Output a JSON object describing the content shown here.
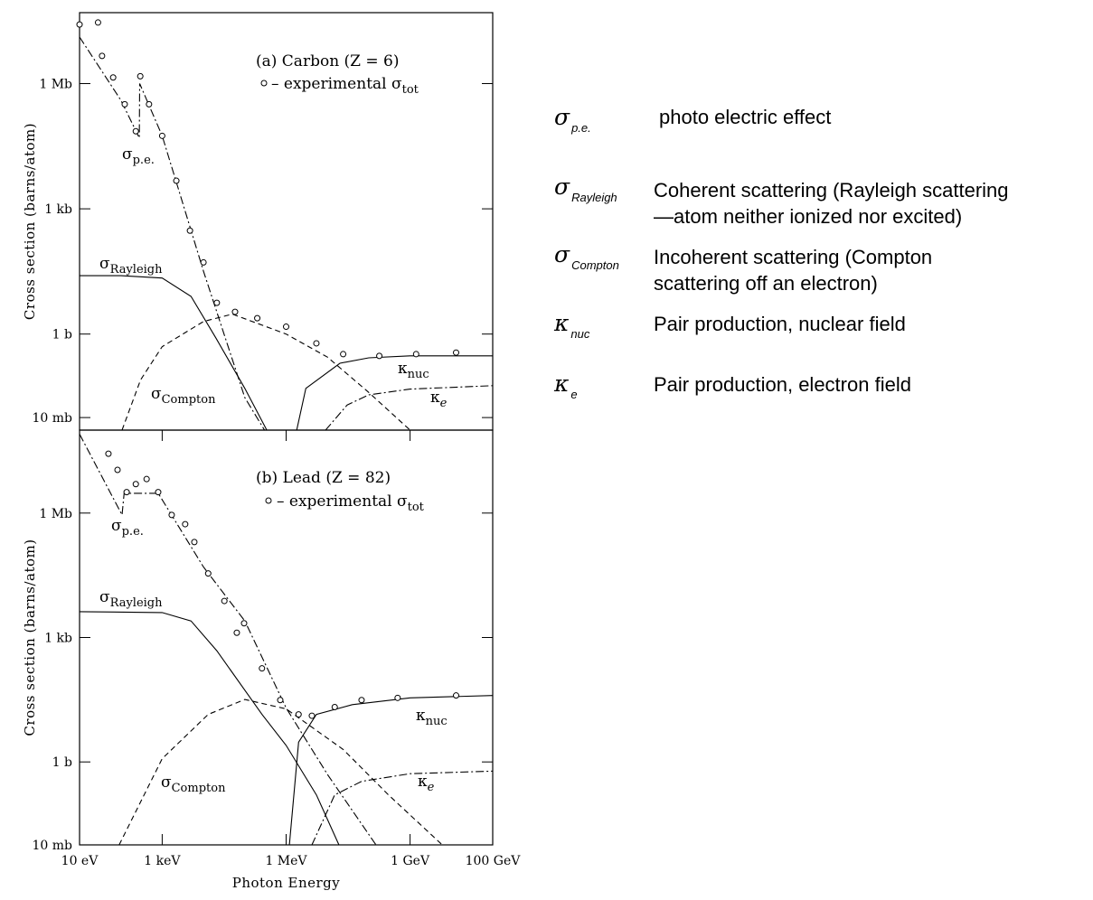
{
  "chart_data": [
    {
      "type": "line",
      "title": "(a) Carbon (Z = 6)",
      "ylabel": "Cross section  (barns/atom)",
      "xscale": "log",
      "yscale": "log",
      "xlim": [
        10,
        100000000000.0
      ],
      "ylim": [
        0.005,
        50000000.0
      ],
      "yticks": [
        {
          "value": 0.01,
          "label": "10 mb"
        },
        {
          "value": 1,
          "label": "1 b"
        },
        {
          "value": 1000,
          "label": "1 kb"
        },
        {
          "value": 1000000,
          "label": "1 Mb"
        }
      ],
      "series": [
        {
          "name": "σ",
          "name_sub": "p.e.",
          "style": "dashdot",
          "color": "#000000",
          "x": [
            10,
            100,
            280,
            285,
            1000,
            10000,
            100000,
            300000
          ],
          "values": [
            13000000,
            400000,
            50000,
            1000000,
            56000,
            32,
            0.03,
            0.005
          ]
        },
        {
          "name": "σ",
          "name_sub": "Rayleigh",
          "style": "solid",
          "color": "#000000",
          "x": [
            10,
            100,
            1000,
            5000,
            20000,
            100000,
            340000
          ],
          "values": [
            25,
            25,
            22,
            8,
            0.8,
            0.05,
            0.005
          ]
        },
        {
          "name": "σ",
          "name_sub": "Compton",
          "style": "dashed",
          "color": "#000000",
          "x": [
            107,
            300,
            1000,
            10000,
            50000,
            1000000,
            10000000,
            100000000,
            1000000000
          ],
          "values": [
            0.005,
            0.08,
            0.5,
            2,
            3,
            1,
            0.28,
            0.04,
            0.005
          ]
        },
        {
          "name": "κ",
          "name_sub": "nuc",
          "style": "solid",
          "color": "#000000",
          "x": [
            1800000,
            3000000,
            20000000,
            100000000,
            1000000000,
            100000000000
          ],
          "values": [
            0.005,
            0.05,
            0.2,
            0.27,
            0.3,
            0.3
          ]
        },
        {
          "name": "κ",
          "name_sub": "e",
          "style": "dashdot",
          "color": "#000000",
          "x": [
            9000000,
            30000000,
            100000000,
            1000000000,
            100000000000
          ],
          "values": [
            0.005,
            0.02,
            0.035,
            0.048,
            0.058
          ]
        },
        {
          "name": "– experimental σ",
          "name_sub": "tot",
          "style": "circles",
          "color": "#000000",
          "x": [
            10,
            28,
            35,
            65,
            124,
            230,
            295,
            480,
            1000,
            2200,
            4700,
            10000,
            21000,
            58000,
            200000,
            1000000,
            5400000,
            24000000,
            180000000,
            1400000000,
            13000000000
          ],
          "values": [
            26000000,
            29000000,
            4600000,
            1400000,
            320000,
            72000,
            1500000,
            320000,
            56000,
            4700,
            300,
            52,
            5.6,
            3.4,
            2.4,
            1.5,
            0.6,
            0.33,
            0.3,
            0.33,
            0.36
          ]
        }
      ]
    },
    {
      "type": "line",
      "title": "(b) Lead (Z = 82)",
      "ylabel": "Cross section  (barns/atom)",
      "xlabel": "Photon Energy",
      "xscale": "log",
      "yscale": "log",
      "xlim": [
        10,
        100000000000.0
      ],
      "ylim": [
        0.01,
        100000000.0
      ],
      "xticks": [
        {
          "value": 10,
          "label": "10 eV"
        },
        {
          "value": 1000,
          "label": "1 keV"
        },
        {
          "value": 1000000,
          "label": "1 MeV"
        },
        {
          "value": 1000000000,
          "label": "1 GeV"
        },
        {
          "value": 100000000000,
          "label": "100 GeV"
        }
      ],
      "yticks": [
        {
          "value": 0.01,
          "label": "10 mb"
        },
        {
          "value": 1,
          "label": "1 b"
        },
        {
          "value": 1000,
          "label": "1 kb"
        },
        {
          "value": 1000000,
          "label": "1 Mb"
        }
      ],
      "series": [
        {
          "name": "σ",
          "name_sub": "p.e.",
          "style": "dashdot",
          "color": "#000000",
          "x": [
            10,
            107,
            120,
            800,
            10000,
            100000,
            1000000,
            10000000,
            150000000
          ],
          "values": [
            80000000,
            900000,
            3000000,
            3000000,
            50000,
            2500,
            20,
            0.5,
            0.01
          ]
        },
        {
          "name": "σ",
          "name_sub": "Rayleigh",
          "style": "solid",
          "color": "#000000",
          "x": [
            10,
            1000,
            5000,
            21000,
            260000,
            1000000,
            5400000,
            19000000
          ],
          "values": [
            4200,
            4000,
            2500,
            480,
            14,
            2.5,
            0.16,
            0.01
          ]
        },
        {
          "name": "σ",
          "name_sub": "Compton",
          "style": "dashed",
          "color": "#000000",
          "x": [
            91,
            1000,
            13000,
            100000,
            1000000,
            24000000,
            300000000,
            6000000000
          ],
          "values": [
            0.01,
            1.2,
            14,
            32,
            19,
            2,
            0.16,
            0.01
          ]
        },
        {
          "name": "κ",
          "name_sub": "nuc",
          "style": "solid",
          "color": "#000000",
          "x": [
            1200000,
            2000000,
            5400000,
            40000000,
            1000000000,
            100000000000
          ],
          "values": [
            0.01,
            3,
            14,
            24,
            35,
            40
          ]
        },
        {
          "name": "κ",
          "name_sub": "e",
          "style": "dashdot",
          "color": "#000000",
          "x": [
            4200000,
            15000000,
            67000000,
            1000000000,
            100000000000
          ],
          "values": [
            0.01,
            0.16,
            0.34,
            0.52,
            0.6
          ]
        },
        {
          "name": "– experimental σ",
          "name_sub": "tot",
          "style": "circles",
          "color": "#000000",
          "x": [
            50,
            83,
            138,
            230,
            420,
            800,
            1700,
            3600,
            6000,
            13000,
            32000,
            64000,
            96000,
            260000,
            720000,
            2000000,
            4200000,
            15000000,
            67000000,
            500000000,
            13000000000
          ],
          "values": [
            27000000,
            11000000,
            3200000,
            5000000,
            6600000,
            3200000,
            900000,
            540000,
            200000,
            35000,
            7600,
            1300,
            2200,
            180,
            31,
            14,
            13,
            21,
            31,
            35,
            40
          ]
        }
      ]
    }
  ],
  "legend_table": {
    "rows": [
      {
        "symbol": "σ",
        "sub": "p.e.",
        "lines": [
          "photo electric effect"
        ]
      },
      {
        "symbol": "σ",
        "sub": "Rayleigh",
        "lines": [
          "Coherent scattering (Rayleigh scattering",
          "—atom neither ionized nor excited)"
        ]
      },
      {
        "symbol": "σ",
        "sub": "Compton",
        "lines": [
          "Incoherent scattering (Compton",
          "scattering off an electron)"
        ]
      },
      {
        "symbol": "κ",
        "sub": "nuc",
        "lines": [
          "Pair production, nuclear field"
        ]
      },
      {
        "symbol": "κ",
        "sub": "e",
        "lines": [
          "Pair production, electron field"
        ]
      }
    ]
  }
}
